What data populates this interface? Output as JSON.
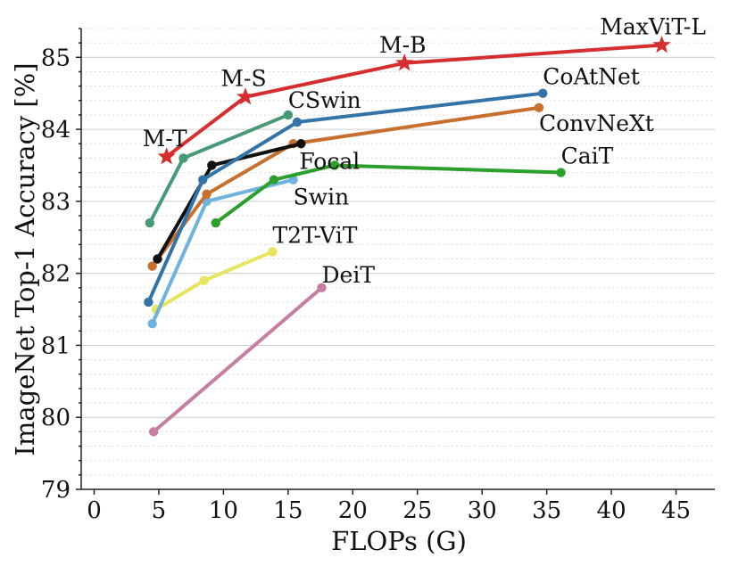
{
  "chart_data": {
    "type": "line",
    "title": "",
    "xlabel": "FLOPs (G)",
    "ylabel": "ImageNet Top-1 Accuracy [%]",
    "xlim": [
      -1,
      48
    ],
    "ylim": [
      79,
      85.4
    ],
    "xticks": [
      0,
      5,
      10,
      15,
      20,
      25,
      30,
      35,
      40,
      45
    ],
    "yticks": [
      79,
      80,
      81,
      82,
      83,
      84,
      85
    ],
    "grid": "horizontal",
    "legend": "none",
    "series": [
      {
        "name": "DeiT",
        "color": "#c67fa2",
        "marker": "circle",
        "x": [
          4.6,
          17.6
        ],
        "y": [
          79.8,
          81.8
        ],
        "label": {
          "text": "DeiT",
          "anchor": 1,
          "dx": 0,
          "dy": -6,
          "align": "start"
        }
      },
      {
        "name": "T2T-ViT",
        "color": "#e9e460",
        "marker": "circle",
        "x": [
          4.8,
          8.5,
          13.8
        ],
        "y": [
          81.5,
          81.9,
          82.3
        ],
        "label": {
          "text": "T2T-ViT",
          "anchor": 2,
          "dx": 0,
          "dy": -10,
          "align": "start"
        }
      },
      {
        "name": "Swin",
        "color": "#6eb3dd",
        "marker": "circle",
        "x": [
          4.5,
          8.7,
          15.4
        ],
        "y": [
          81.3,
          83.0,
          83.3
        ],
        "label": {
          "text": "Swin",
          "anchor": 2,
          "dx": 0,
          "dy": 28,
          "align": "start"
        }
      },
      {
        "name": "CaiT",
        "color": "#2ca02c",
        "marker": "circle",
        "x": [
          9.4,
          13.9,
          18.6,
          36.1
        ],
        "y": [
          82.7,
          83.3,
          83.5,
          83.4
        ],
        "label": {
          "text": "CaiT",
          "anchor": 3,
          "dx": 0,
          "dy": -10,
          "align": "start"
        }
      },
      {
        "name": "ConvNeXt",
        "color": "#c96f2d",
        "marker": "circle",
        "x": [
          4.5,
          8.7,
          15.4,
          34.4
        ],
        "y": [
          82.1,
          83.1,
          83.8,
          84.3
        ],
        "label": {
          "text": "ConvNeXt",
          "anchor": 3,
          "dx": 0,
          "dy": 26,
          "align": "start"
        }
      },
      {
        "name": "Focal",
        "color": "#111111",
        "marker": "circle",
        "x": [
          4.9,
          9.1,
          16.0
        ],
        "y": [
          82.2,
          83.5,
          83.8
        ],
        "label": {
          "text": "Focal",
          "anchor": 2,
          "dx": -2,
          "dy": 28,
          "align": "start"
        }
      },
      {
        "name": "CoAtNet",
        "color": "#3274a8",
        "marker": "circle",
        "x": [
          4.2,
          8.4,
          15.7,
          34.7
        ],
        "y": [
          81.6,
          83.3,
          84.1,
          84.5
        ],
        "label": {
          "text": "CoAtNet",
          "anchor": 3,
          "dx": 0,
          "dy": -10,
          "align": "start"
        }
      },
      {
        "name": "CSwin",
        "color": "#469a77",
        "marker": "circle",
        "x": [
          4.3,
          6.9,
          15.0
        ],
        "y": [
          82.7,
          83.6,
          84.2
        ],
        "label": {
          "text": "CSwin",
          "anchor": 2,
          "dx": 0,
          "dy": -8,
          "align": "start"
        }
      },
      {
        "name": "MaxViT",
        "color": "#d62e2e",
        "marker": "star",
        "x": [
          5.6,
          11.7,
          24.0,
          43.9
        ],
        "y": [
          83.62,
          84.45,
          84.92,
          85.17
        ],
        "points": [
          {
            "text": "M-T",
            "dx": -2,
            "dy": -12,
            "align": "middle"
          },
          {
            "text": "M-S",
            "dx": -2,
            "dy": -12,
            "align": "middle"
          },
          {
            "text": "M-B",
            "dx": -2,
            "dy": -12,
            "align": "middle"
          },
          {
            "text": "MaxViT-L",
            "dx": -10,
            "dy": -12,
            "align": "middle"
          }
        ]
      }
    ]
  }
}
